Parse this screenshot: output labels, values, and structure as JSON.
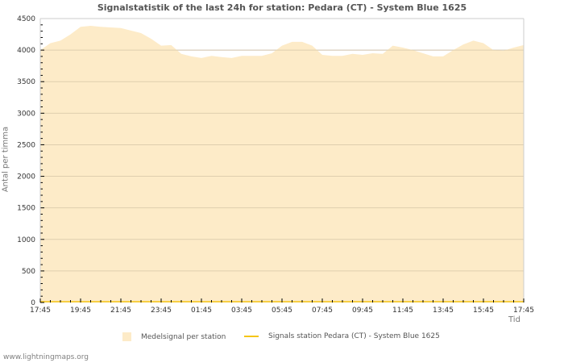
{
  "chart_data": {
    "type": "area",
    "title": "Signalstatistik of the last 24h for station: Pedara (CT) - System Blue 1625",
    "xlabel": "Tid",
    "ylabel": "Antal per timma",
    "ylim": [
      0,
      4500
    ],
    "yticks": [
      0,
      500,
      1000,
      1500,
      2000,
      2500,
      3000,
      3500,
      4000,
      4500
    ],
    "xtick_labels": [
      "17:45",
      "19:45",
      "21:45",
      "23:45",
      "01:45",
      "03:45",
      "05:45",
      "07:45",
      "09:45",
      "11:45",
      "13:45",
      "15:45",
      "17:45"
    ],
    "grid": true,
    "legend_position": "bottom",
    "x": [
      "17:45",
      "18:15",
      "18:45",
      "19:15",
      "19:45",
      "20:15",
      "20:45",
      "21:15",
      "21:45",
      "22:15",
      "22:45",
      "23:15",
      "23:45",
      "00:15",
      "00:45",
      "01:15",
      "01:45",
      "02:15",
      "02:45",
      "03:15",
      "03:45",
      "04:15",
      "04:45",
      "05:15",
      "05:45",
      "06:15",
      "06:45",
      "07:15",
      "07:45",
      "08:15",
      "08:45",
      "09:15",
      "09:45",
      "10:15",
      "10:45",
      "11:15",
      "11:45",
      "12:15",
      "12:45",
      "13:15",
      "13:45",
      "14:15",
      "14:45",
      "15:15",
      "15:45",
      "16:15",
      "16:45",
      "17:15",
      "17:45"
    ],
    "series": [
      {
        "name": "Medelsignal per station",
        "kind": "area",
        "color": "#fdebc8",
        "values": [
          4000,
          4110,
          4150,
          4250,
          4370,
          4385,
          4370,
          4360,
          4350,
          4310,
          4270,
          4180,
          4070,
          4080,
          3940,
          3900,
          3875,
          3910,
          3890,
          3875,
          3910,
          3910,
          3910,
          3950,
          4070,
          4130,
          4130,
          4070,
          3925,
          3910,
          3910,
          3940,
          3925,
          3950,
          3940,
          4070,
          4040,
          4000,
          3950,
          3900,
          3900,
          4000,
          4090,
          4150,
          4110,
          4000,
          3990,
          4040,
          4080
        ]
      },
      {
        "name": "Signals station Pedara (CT) - System Blue 1625",
        "kind": "line",
        "color": "#f5c518",
        "values": [
          0,
          0,
          0,
          0,
          0,
          0,
          0,
          0,
          0,
          0,
          0,
          0,
          0,
          0,
          0,
          0,
          0,
          0,
          0,
          0,
          0,
          0,
          0,
          0,
          0,
          0,
          0,
          0,
          0,
          0,
          0,
          0,
          0,
          0,
          0,
          0,
          0,
          0,
          0,
          0,
          0,
          0,
          0,
          0,
          0,
          0,
          0,
          0,
          0
        ]
      }
    ]
  },
  "legend": {
    "items": [
      {
        "label": "Medelsignal per station"
      },
      {
        "label": "Signals station Pedara (CT) - System Blue 1625"
      }
    ]
  },
  "footer": {
    "text": "www.lightningmaps.org"
  }
}
